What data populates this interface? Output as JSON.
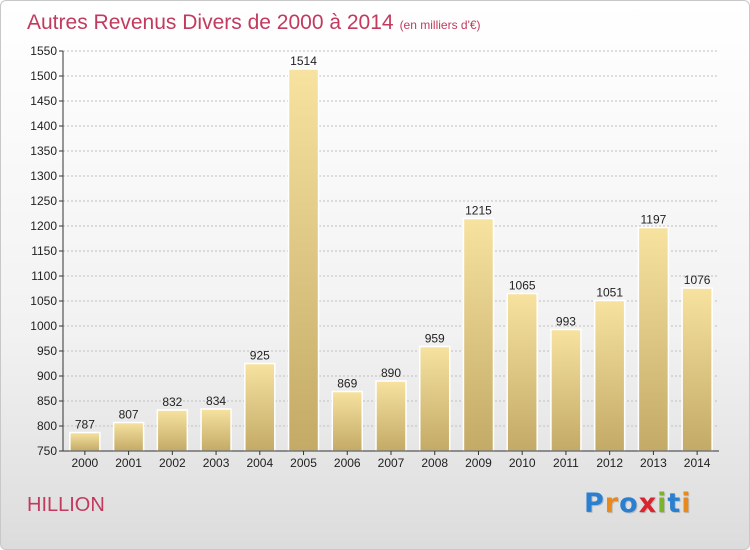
{
  "header": {
    "title": "Autres Revenus Divers de 2000 à 2014",
    "subtitle": "(en milliers d'€)"
  },
  "footer": {
    "place": "HILLION",
    "logo_text": "Proxiti",
    "logo_colors": [
      "#2a7fd0",
      "#e8891c",
      "#2a7fd0",
      "#d8252e",
      "#7ab42a",
      "#2a7fd0",
      "#e8891c"
    ]
  },
  "colors": {
    "bar_light": "#f7e2a0",
    "bar_dark": "#c3aa66",
    "grid": "#bfbfbf",
    "axis": "#333333"
  },
  "chart_data": {
    "type": "bar",
    "categories": [
      "2000",
      "2001",
      "2002",
      "2003",
      "2004",
      "2005",
      "2006",
      "2007",
      "2008",
      "2009",
      "2010",
      "2011",
      "2012",
      "2013",
      "2014"
    ],
    "values": [
      787,
      807,
      832,
      834,
      925,
      1514,
      869,
      890,
      959,
      1215,
      1065,
      993,
      1051,
      1197,
      1076
    ],
    "ylim": [
      750,
      1550
    ],
    "yticks": [
      750,
      800,
      850,
      900,
      950,
      1000,
      1050,
      1100,
      1150,
      1200,
      1250,
      1300,
      1350,
      1400,
      1450,
      1500,
      1550
    ],
    "grid": true
  }
}
